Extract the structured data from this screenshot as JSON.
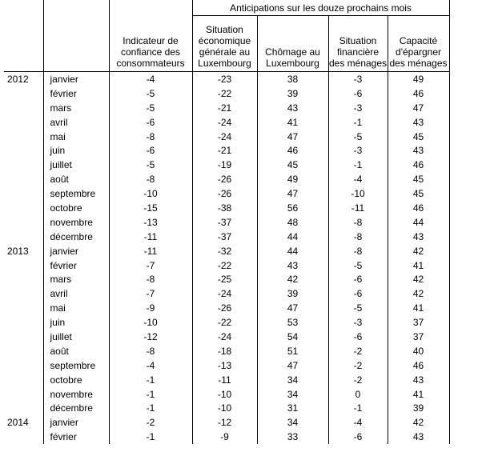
{
  "header": {
    "group_label": "Anticipations sur les douze prochains mois",
    "col_confidence": "Indicateur de confiance des consommateurs",
    "col_economy": "Situation économique générale au Luxembourg",
    "col_unemployment": "Chômage au Luxembourg",
    "col_financial": "Situation financière des ménages",
    "col_savings": "Capacité d'épargner des ménages"
  },
  "rows": [
    {
      "year": "2012",
      "month": "janvier",
      "v": [
        "-4",
        "-23",
        "38",
        "-3",
        "49"
      ]
    },
    {
      "year": "",
      "month": "février",
      "v": [
        "-5",
        "-22",
        "39",
        "-6",
        "46"
      ]
    },
    {
      "year": "",
      "month": "mars",
      "v": [
        "-5",
        "-21",
        "43",
        "-3",
        "47"
      ]
    },
    {
      "year": "",
      "month": "avril",
      "v": [
        "-6",
        "-24",
        "41",
        "-1",
        "43"
      ]
    },
    {
      "year": "",
      "month": "mai",
      "v": [
        "-8",
        "-24",
        "47",
        "-5",
        "45"
      ]
    },
    {
      "year": "",
      "month": "juin",
      "v": [
        "-6",
        "-21",
        "46",
        "-3",
        "43"
      ]
    },
    {
      "year": "",
      "month": "juillet",
      "v": [
        "-5",
        "-19",
        "45",
        "-1",
        "46"
      ]
    },
    {
      "year": "",
      "month": "août",
      "v": [
        "-8",
        "-26",
        "49",
        "-4",
        "45"
      ]
    },
    {
      "year": "",
      "month": "septembre",
      "v": [
        "-10",
        "-26",
        "47",
        "-10",
        "45"
      ]
    },
    {
      "year": "",
      "month": "octobre",
      "v": [
        "-15",
        "-38",
        "56",
        "-11",
        "46"
      ]
    },
    {
      "year": "",
      "month": "novembre",
      "v": [
        "-13",
        "-37",
        "48",
        "-8",
        "44"
      ]
    },
    {
      "year": "",
      "month": "décembre",
      "v": [
        "-11",
        "-37",
        "44",
        "-8",
        "43"
      ]
    },
    {
      "year": "2013",
      "month": "janvier",
      "v": [
        "-11",
        "-32",
        "44",
        "-8",
        "42"
      ]
    },
    {
      "year": "",
      "month": "février",
      "v": [
        "-7",
        "-22",
        "43",
        "-5",
        "41"
      ]
    },
    {
      "year": "",
      "month": "mars",
      "v": [
        "-8",
        "-25",
        "42",
        "-6",
        "42"
      ]
    },
    {
      "year": "",
      "month": "avril",
      "v": [
        "-7",
        "-24",
        "39",
        "-6",
        "42"
      ]
    },
    {
      "year": "",
      "month": "mai",
      "v": [
        "-9",
        "-26",
        "47",
        "-5",
        "41"
      ]
    },
    {
      "year": "",
      "month": "juin",
      "v": [
        "-10",
        "-22",
        "53",
        "-3",
        "37"
      ]
    },
    {
      "year": "",
      "month": "juillet",
      "v": [
        "-12",
        "-24",
        "54",
        "-6",
        "37"
      ]
    },
    {
      "year": "",
      "month": "août",
      "v": [
        "-8",
        "-18",
        "51",
        "-2",
        "40"
      ]
    },
    {
      "year": "",
      "month": "septembre",
      "v": [
        "-4",
        "-13",
        "47",
        "-2",
        "46"
      ]
    },
    {
      "year": "",
      "month": "octobre",
      "v": [
        "-1",
        "-11",
        "34",
        "-2",
        "43"
      ]
    },
    {
      "year": "",
      "month": "novembre",
      "v": [
        "-1",
        "-10",
        "34",
        "0",
        "41"
      ]
    },
    {
      "year": "",
      "month": "décembre",
      "v": [
        "-1",
        "-10",
        "31",
        "-1",
        "39"
      ]
    },
    {
      "year": "2014",
      "month": "janvier",
      "v": [
        "-2",
        "-12",
        "34",
        "-4",
        "42"
      ]
    },
    {
      "year": "",
      "month": "février",
      "v": [
        "-1",
        "-9",
        "33",
        "-6",
        "43"
      ]
    }
  ]
}
